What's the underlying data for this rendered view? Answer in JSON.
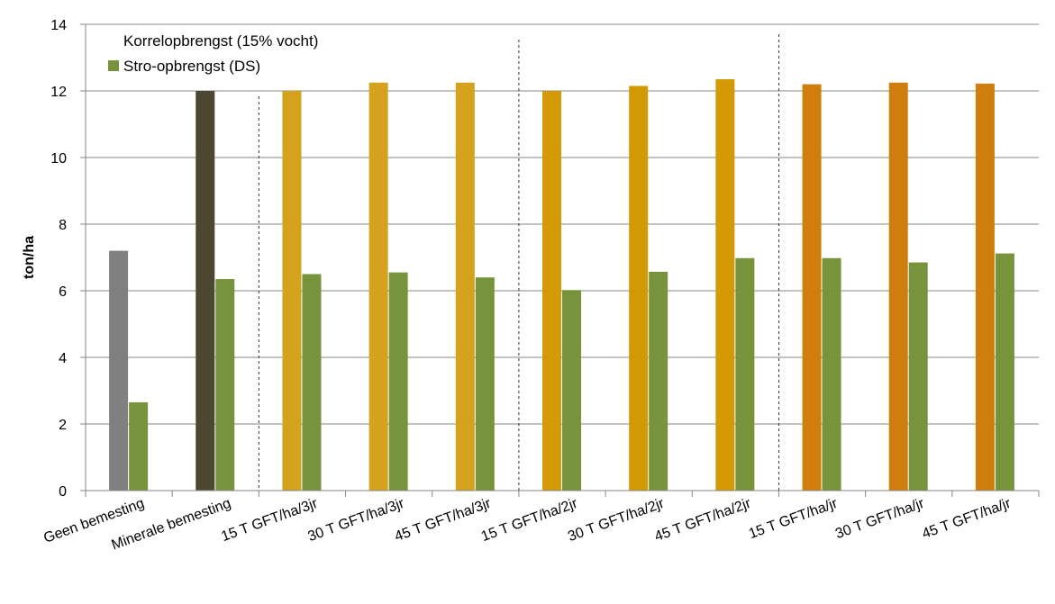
{
  "chart_data": {
    "type": "bar",
    "title": "",
    "xlabel": "",
    "ylabel": "ton/ha",
    "ylim": [
      0,
      14
    ],
    "yticks": [
      0,
      2,
      4,
      6,
      8,
      10,
      12,
      14
    ],
    "grid": true,
    "legend_position": "top-left",
    "categories": [
      "Geen bemesting",
      "Minerale bemesting",
      "15 T GFT/ha/3jr",
      "30 T GFT/ha/3jr",
      "45 T GFT/ha/3jr",
      "15 T GFT/ha/2jr",
      "30 T GFT/ha/2jr",
      "45 T GFT/ha/2jr",
      "15 T GFT/ha/jr",
      "30 T GFT/ha/jr",
      "45 T GFT/ha/jr"
    ],
    "series": [
      {
        "name": "Korrelopbrengst (15% vocht)",
        "values": [
          7.2,
          12.0,
          12.0,
          12.25,
          12.25,
          12.0,
          12.15,
          12.35,
          12.2,
          12.25,
          12.22
        ],
        "colors": [
          "#808080",
          "#4d4630",
          "#d4a21c",
          "#d4a21c",
          "#d4a21c",
          "#d39a06",
          "#d39a06",
          "#d39a06",
          "#cf7d0c",
          "#cf7d0c",
          "#cf7d0c"
        ]
      },
      {
        "name": "Stro-opbrengst (DS)",
        "values": [
          2.65,
          6.35,
          6.5,
          6.55,
          6.4,
          6.02,
          6.57,
          6.98,
          6.98,
          6.85,
          7.12
        ],
        "colors": [
          "#77933c",
          "#77933c",
          "#77933c",
          "#77933c",
          "#77933c",
          "#77933c",
          "#77933c",
          "#77933c",
          "#77933c",
          "#77933c",
          "#77933c"
        ]
      }
    ],
    "separators_after_category": [
      1,
      4,
      7
    ]
  }
}
